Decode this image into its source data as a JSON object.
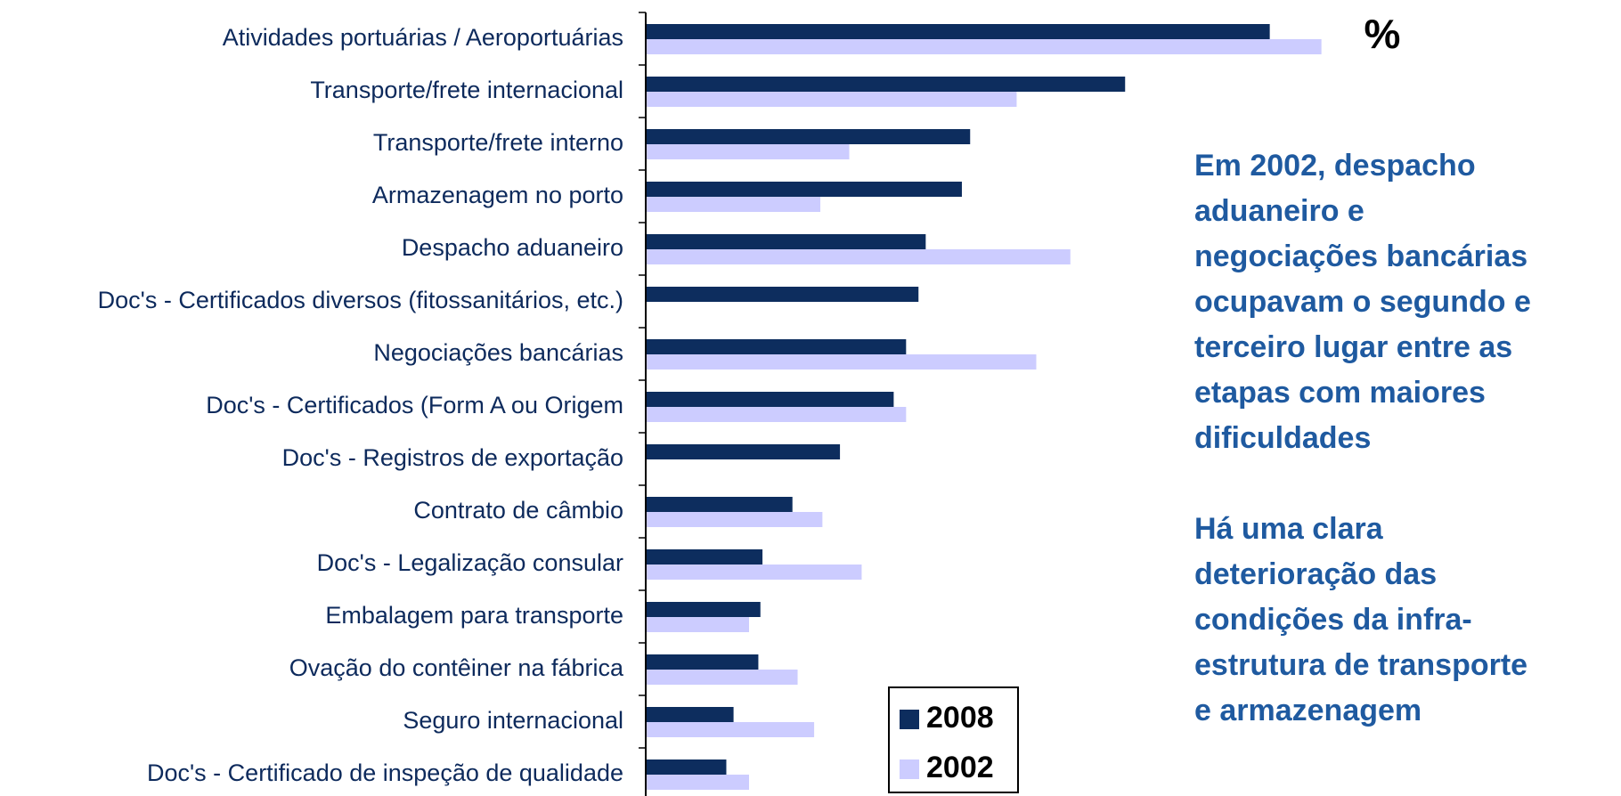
{
  "chart_data": {
    "type": "bar",
    "orientation": "horizontal",
    "unit_label": "%",
    "categories": [
      "Atividades portuárias / Aeroportuárias",
      "Transporte/frete internacional",
      "Transporte/frete interno",
      "Armazenagem no porto",
      "Despacho aduaneiro",
      "Doc's - Certificados diversos (fitossanitários, etc.)",
      "Negociações bancárias",
      "Doc's - Certificados (Form A ou Origem",
      "Doc's - Registros de exportação",
      "Contrato de câmbio",
      "Doc's - Legalização consular",
      "Embalagem para transporte",
      "Ovação do contêiner na fábrica",
      "Seguro internacional",
      "Doc's - Certificado de inspeção de qualidade"
    ],
    "series": [
      {
        "name": "2008",
        "color": "#0d2d5e",
        "values": [
          60.4,
          46.4,
          31.4,
          30.6,
          27.1,
          26.4,
          25.2,
          24.0,
          18.8,
          14.2,
          11.3,
          11.1,
          10.9,
          8.5,
          7.8
        ]
      },
      {
        "name": "2002",
        "color": "#ccccff",
        "values": [
          65.4,
          35.9,
          19.7,
          16.9,
          41.1,
          null,
          37.8,
          25.2,
          null,
          17.1,
          20.9,
          10.0,
          14.7,
          16.3,
          10.0
        ]
      }
    ],
    "xlim": [
      0,
      100
    ],
    "legend": "lower-center",
    "notes": [
      [
        "Em 2002, despacho",
        "aduaneiro e",
        "negociações bancárias",
        "ocupavam o segundo e",
        "terceiro lugar entre as",
        "etapas com maiores",
        "dificuldades"
      ],
      [
        "Há uma clara",
        "deterioração das",
        "condições da infra-",
        "estrutura de transporte",
        "e armazenagem"
      ]
    ]
  }
}
